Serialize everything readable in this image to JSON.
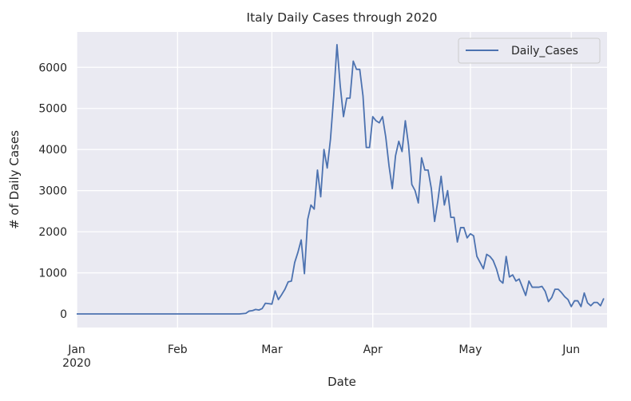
{
  "chart_data": {
    "type": "line",
    "title": "Italy Daily Cases through 2020",
    "xlabel": "Date",
    "ylabel": "# of Daily Cases",
    "x_start": "2020-01-01",
    "x_end": "2020-06-12",
    "ylim": [
      -330,
      6860
    ],
    "y_ticks": [
      0,
      1000,
      2000,
      3000,
      4000,
      5000,
      6000
    ],
    "x_ticks": [
      {
        "date": "2020-01-01",
        "label": "Jan",
        "sublabel": "2020"
      },
      {
        "date": "2020-02-01",
        "label": "Feb",
        "sublabel": ""
      },
      {
        "date": "2020-03-01",
        "label": "Mar",
        "sublabel": ""
      },
      {
        "date": "2020-04-01",
        "label": "Apr",
        "sublabel": ""
      },
      {
        "date": "2020-05-01",
        "label": "May",
        "sublabel": ""
      },
      {
        "date": "2020-06-01",
        "label": "Jun",
        "sublabel": ""
      }
    ],
    "grid": true,
    "legend_position": "top-right",
    "series": [
      {
        "name": "Daily_Cases",
        "color": "#4c72b0",
        "points": [
          [
            "2020-01-01",
            0
          ],
          [
            "2020-02-20",
            0
          ],
          [
            "2020-02-22",
            15
          ],
          [
            "2020-02-23",
            70
          ],
          [
            "2020-02-24",
            80
          ],
          [
            "2020-02-25",
            110
          ],
          [
            "2020-02-26",
            95
          ],
          [
            "2020-02-27",
            130
          ],
          [
            "2020-02-28",
            260
          ],
          [
            "2020-02-29",
            250
          ],
          [
            "2020-03-01",
            240
          ],
          [
            "2020-03-02",
            560
          ],
          [
            "2020-03-03",
            350
          ],
          [
            "2020-03-04",
            470
          ],
          [
            "2020-03-05",
            600
          ],
          [
            "2020-03-06",
            780
          ],
          [
            "2020-03-07",
            800
          ],
          [
            "2020-03-08",
            1250
          ],
          [
            "2020-03-09",
            1500
          ],
          [
            "2020-03-10",
            1800
          ],
          [
            "2020-03-11",
            980
          ],
          [
            "2020-03-12",
            2300
          ],
          [
            "2020-03-13",
            2650
          ],
          [
            "2020-03-14",
            2550
          ],
          [
            "2020-03-15",
            3500
          ],
          [
            "2020-03-16",
            2850
          ],
          [
            "2020-03-17",
            4000
          ],
          [
            "2020-03-18",
            3550
          ],
          [
            "2020-03-19",
            4250
          ],
          [
            "2020-03-20",
            5300
          ],
          [
            "2020-03-21",
            6550
          ],
          [
            "2020-03-22",
            5550
          ],
          [
            "2020-03-23",
            4800
          ],
          [
            "2020-03-24",
            5250
          ],
          [
            "2020-03-25",
            5250
          ],
          [
            "2020-03-26",
            6150
          ],
          [
            "2020-03-27",
            5950
          ],
          [
            "2020-03-28",
            5950
          ],
          [
            "2020-03-29",
            5300
          ],
          [
            "2020-03-30",
            4050
          ],
          [
            "2020-03-31",
            4050
          ],
          [
            "2020-04-01",
            4800
          ],
          [
            "2020-04-02",
            4700
          ],
          [
            "2020-04-03",
            4650
          ],
          [
            "2020-04-04",
            4800
          ],
          [
            "2020-04-05",
            4300
          ],
          [
            "2020-04-06",
            3600
          ],
          [
            "2020-04-07",
            3050
          ],
          [
            "2020-04-08",
            3850
          ],
          [
            "2020-04-09",
            4200
          ],
          [
            "2020-04-10",
            3950
          ],
          [
            "2020-04-11",
            4700
          ],
          [
            "2020-04-12",
            4100
          ],
          [
            "2020-04-13",
            3150
          ],
          [
            "2020-04-14",
            3000
          ],
          [
            "2020-04-15",
            2700
          ],
          [
            "2020-04-16",
            3800
          ],
          [
            "2020-04-17",
            3500
          ],
          [
            "2020-04-18",
            3500
          ],
          [
            "2020-04-19",
            3050
          ],
          [
            "2020-04-20",
            2250
          ],
          [
            "2020-04-21",
            2750
          ],
          [
            "2020-04-22",
            3350
          ],
          [
            "2020-04-23",
            2650
          ],
          [
            "2020-04-24",
            3000
          ],
          [
            "2020-04-25",
            2350
          ],
          [
            "2020-04-26",
            2350
          ],
          [
            "2020-04-27",
            1750
          ],
          [
            "2020-04-28",
            2100
          ],
          [
            "2020-04-29",
            2100
          ],
          [
            "2020-04-30",
            1850
          ],
          [
            "2020-05-01",
            1950
          ],
          [
            "2020-05-02",
            1900
          ],
          [
            "2020-05-03",
            1400
          ],
          [
            "2020-05-04",
            1250
          ],
          [
            "2020-05-05",
            1100
          ],
          [
            "2020-05-06",
            1450
          ],
          [
            "2020-05-07",
            1400
          ],
          [
            "2020-05-08",
            1300
          ],
          [
            "2020-05-09",
            1100
          ],
          [
            "2020-05-10",
            820
          ],
          [
            "2020-05-11",
            750
          ],
          [
            "2020-05-12",
            1400
          ],
          [
            "2020-05-13",
            900
          ],
          [
            "2020-05-14",
            950
          ],
          [
            "2020-05-15",
            800
          ],
          [
            "2020-05-16",
            850
          ],
          [
            "2020-05-17",
            650
          ],
          [
            "2020-05-18",
            450
          ],
          [
            "2020-05-19",
            800
          ],
          [
            "2020-05-20",
            650
          ],
          [
            "2020-05-21",
            650
          ],
          [
            "2020-05-22",
            650
          ],
          [
            "2020-05-23",
            670
          ],
          [
            "2020-05-24",
            550
          ],
          [
            "2020-05-25",
            300
          ],
          [
            "2020-05-26",
            400
          ],
          [
            "2020-05-27",
            600
          ],
          [
            "2020-05-28",
            600
          ],
          [
            "2020-05-29",
            520
          ],
          [
            "2020-05-30",
            420
          ],
          [
            "2020-05-31",
            350
          ],
          [
            "2020-06-01",
            180
          ],
          [
            "2020-06-02",
            320
          ],
          [
            "2020-06-03",
            320
          ],
          [
            "2020-06-04",
            180
          ],
          [
            "2020-06-05",
            510
          ],
          [
            "2020-06-06",
            270
          ],
          [
            "2020-06-07",
            200
          ],
          [
            "2020-06-08",
            280
          ],
          [
            "2020-06-09",
            280
          ],
          [
            "2020-06-10",
            200
          ],
          [
            "2020-06-11",
            380
          ]
        ]
      }
    ]
  }
}
